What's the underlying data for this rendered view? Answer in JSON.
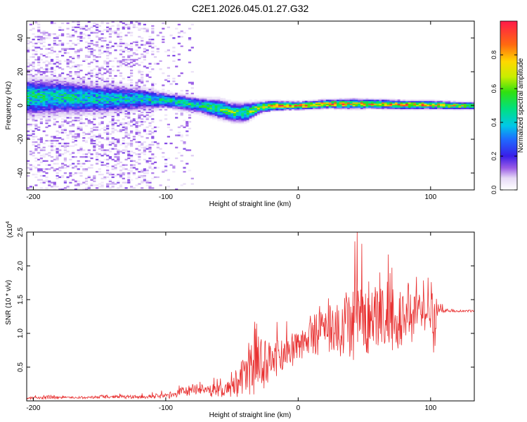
{
  "title": "C2E1.2026.045.01.27.G32",
  "chart_data": [
    {
      "type": "heatmap",
      "title": "C2E1.2026.045.01.27.G32",
      "xlabel": "Height of straight line (km)",
      "ylabel": "Frequency (Hz)",
      "xlim": [
        -205,
        133
      ],
      "ylim": [
        -50,
        50
      ],
      "xticks": [
        "-200",
        "-100",
        "0",
        "100"
      ],
      "xtick_values": [
        -200,
        -100,
        0,
        100
      ],
      "yticks": [
        "-40",
        "-20",
        "0",
        "20",
        "40"
      ],
      "ytick_values": [
        -40,
        -20,
        0,
        20,
        40
      ],
      "colorbar": {
        "label": "Normalized spectral amplitude",
        "range": [
          0,
          1
        ],
        "ticks": [
          "0.0",
          "0.2",
          "0.4",
          "0.6",
          "0.8"
        ],
        "tick_values": [
          0.0,
          0.2,
          0.4,
          0.6,
          0.8
        ]
      },
      "ridge": {
        "x": [
          -205,
          -180,
          -150,
          -120,
          -100,
          -90,
          -75,
          -60,
          -50,
          -40,
          -30,
          -20,
          -10,
          0,
          20,
          40,
          60,
          80,
          100,
          120,
          133
        ],
        "center_hz": [
          5,
          5,
          4,
          4,
          3,
          2,
          0,
          -2,
          -4,
          -4,
          -1,
          0,
          0,
          0,
          1,
          1,
          1,
          0.5,
          0.5,
          0,
          0
        ],
        "halfwidth_hz": [
          10,
          9,
          8,
          6,
          4,
          4,
          4,
          5,
          5,
          5,
          3,
          2.5,
          2.2,
          2,
          2.2,
          2.5,
          2.3,
          2.2,
          2.1,
          1.9,
          1.8
        ],
        "peak_amplitude": [
          0.5,
          0.5,
          0.45,
          0.45,
          0.5,
          0.5,
          0.55,
          0.6,
          0.6,
          0.6,
          0.7,
          0.9,
          0.9,
          0.95,
          0.9,
          0.85,
          0.85,
          0.9,
          0.85,
          0.75,
          0.7
        ]
      }
    },
    {
      "type": "line",
      "xlabel": "Height of straight line (km)",
      "ylabel": "SNR (10 * v/v)",
      "exponent_label": "(x10",
      "exponent_power": "4",
      "xlim": [
        -205,
        133
      ],
      "ylim": [
        0,
        2.5
      ],
      "xticks": [
        "-200",
        "-100",
        "0",
        "100"
      ],
      "xtick_values": [
        -200,
        -100,
        0,
        100
      ],
      "yticks": [
        "0.5",
        "1.0",
        "1.5",
        "2.0",
        "2.5"
      ],
      "ytick_values": [
        0.5,
        1.0,
        1.5,
        2.0,
        2.5
      ],
      "series": [
        {
          "name": "SNR",
          "color": "#e83030",
          "x": [
            -205,
            -195,
            -190,
            -180,
            -160,
            -140,
            -120,
            -100,
            -90,
            -80,
            -70,
            -60,
            -50,
            -40,
            -30,
            -20,
            -10,
            0,
            10,
            20,
            30,
            40,
            50,
            60,
            70,
            80,
            90,
            100,
            103,
            105,
            110,
            120,
            133
          ],
          "base": [
            0.04,
            0.05,
            0.05,
            0.05,
            0.05,
            0.06,
            0.06,
            0.08,
            0.12,
            0.18,
            0.16,
            0.14,
            0.18,
            0.35,
            0.55,
            0.62,
            0.72,
            0.85,
            0.98,
            1.05,
            1.12,
            1.25,
            1.28,
            1.28,
            1.27,
            1.3,
            1.3,
            1.25,
            1.2,
            1.38,
            1.34,
            1.33,
            1.33
          ],
          "amp": [
            0.02,
            0.02,
            0.05,
            0.02,
            0.02,
            0.03,
            0.03,
            0.05,
            0.08,
            0.12,
            0.1,
            0.12,
            0.18,
            0.45,
            0.55,
            0.45,
            0.3,
            0.3,
            0.35,
            0.45,
            0.55,
            0.7,
            0.75,
            0.7,
            0.6,
            0.55,
            0.45,
            0.4,
            0.9,
            0.15,
            0.03,
            0.02,
            0.02
          ]
        }
      ]
    }
  ]
}
